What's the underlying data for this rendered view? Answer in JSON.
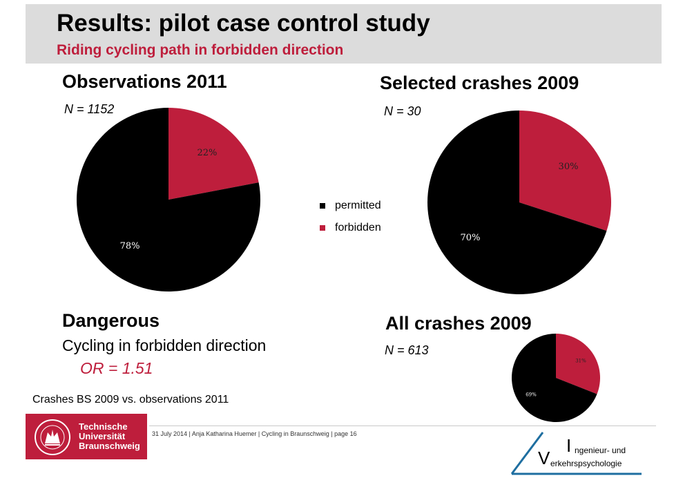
{
  "header": {
    "title": "Results: pilot case control study",
    "subtitle": "Riding cycling path in forbidden direction"
  },
  "colors": {
    "accent": "#be1e3c",
    "permitted": "#000000",
    "forbidden": "#be1e3c",
    "header_band": "#dcdcdc"
  },
  "chart_data": [
    {
      "type": "pie",
      "title": "Observations 2011",
      "n_label": "N = 1152",
      "categories": [
        "forbidden",
        "permitted"
      ],
      "values": [
        22,
        78
      ],
      "labels": [
        "22%",
        "78%"
      ],
      "start": "12 o'clock, clockwise"
    },
    {
      "type": "pie",
      "title": "Selected crashes 2009",
      "n_label": "N = 30",
      "categories": [
        "forbidden",
        "permitted"
      ],
      "values": [
        30,
        70
      ],
      "labels": [
        "30%",
        "70%"
      ],
      "start": "12 o'clock, clockwise"
    },
    {
      "type": "pie",
      "title": "All crashes 2009",
      "n_label": "N = 613",
      "categories": [
        "forbidden",
        "permitted"
      ],
      "values": [
        31,
        69
      ],
      "labels": [
        "31%",
        "69%"
      ],
      "start": "12 o'clock, clockwise"
    }
  ],
  "legend": {
    "items": [
      {
        "label": "permitted",
        "color": "#000000"
      },
      {
        "label": "forbidden",
        "color": "#be1e3c"
      }
    ],
    "placement": "center between charts"
  },
  "dangerous": {
    "heading": "Dangerous",
    "text": "Cycling in forbidden direction",
    "or_value": "OR = 1.51"
  },
  "footnote": "Crashes BS 2009 vs. observations 2011",
  "footer": {
    "meta": "31 July 2014 | Anja Katharina Huemer | Cycling in Braunschweig | page 16",
    "university": [
      "Technische",
      "Universität",
      "Braunschweig"
    ],
    "institute_letters": [
      "I",
      "V"
    ],
    "institute_line1": "ngenieur-  und",
    "institute_line2": "erkehrspsychologie"
  }
}
